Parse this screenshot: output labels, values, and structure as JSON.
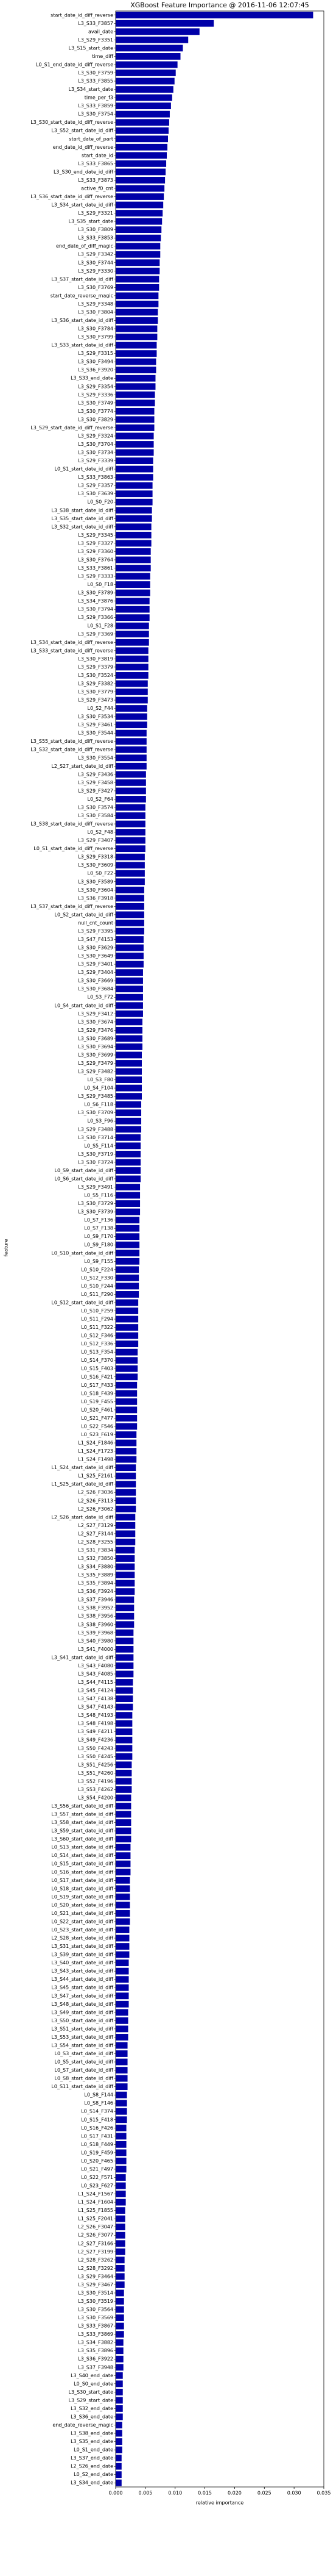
{
  "chart_data": {
    "type": "barh",
    "title": "XGBoost Feature Importance @ 2016-11-06 12:07:45",
    "xlabel": "relative importance",
    "ylabel": "feature",
    "color": "#0000a8",
    "xlim": [
      0,
      0.035
    ],
    "xticks": [
      {
        "value": 0,
        "label": "0.000"
      },
      {
        "value": 0.005,
        "label": "0.005"
      },
      {
        "value": 0.01,
        "label": "0.010"
      },
      {
        "value": 0.015,
        "label": "0.015"
      },
      {
        "value": 0.02,
        "label": "0.020"
      },
      {
        "value": 0.025,
        "label": "0.025"
      },
      {
        "value": 0.03,
        "label": "0.030"
      },
      {
        "value": 0.035,
        "label": "0.035"
      }
    ],
    "categories": [
      "start_date_id_diff_reverse",
      "L3_S33_F3857",
      "avail_date",
      "L3_S29_F3351",
      "L3_S15_start_date",
      "time_diff",
      "L0_S1_end_date_id_diff_reverse",
      "L3_S30_F3759",
      "L3_S33_F3855",
      "L3_S34_start_date",
      "time_per_f3",
      "L3_S33_F3859",
      "L3_S30_F3754",
      "L3_S30_start_date_id_diff_reverse",
      "L3_S52_start_date_id_diff",
      "start_date_of_part",
      "end_date_id_diff_reverse",
      "start_date_id",
      "L3_S33_F3865",
      "L3_S30_end_date_id_diff",
      "L3_S33_F3873",
      "active_f0_cnt",
      "L3_S36_start_date_id_diff_reverse",
      "L3_S34_start_date_id_diff",
      "L3_S29_F3321",
      "L3_S35_start_date",
      "L3_S30_F3809",
      "L3_S33_F3853",
      "end_date_of_diff_magic",
      "L3_S29_F3342",
      "L3_S30_F3744",
      "L3_S29_F3330",
      "L3_S37_start_date_id_diff",
      "L3_S30_F3769",
      "start_date_reverse_magic",
      "L3_S29_F3348",
      "L3_S30_F3804",
      "L3_S36_start_date_id_diff",
      "L3_S30_F3784",
      "L3_S30_F3799",
      "L3_S33_start_date_id_diff",
      "L3_S29_F3315",
      "L3_S30_F3494",
      "L3_S36_F3920",
      "L3_S33_end_date",
      "L3_S29_F3354",
      "L3_S29_F3336",
      "L3_S30_F3749",
      "L3_S30_F3774",
      "L3_S30_F3829",
      "L3_S29_start_date_id_diff_reverse",
      "L3_S29_F3324",
      "L3_S30_F3704",
      "L3_S30_F3734",
      "L3_S29_F3339",
      "L0_S1_start_date_id_diff",
      "L3_S33_F3863",
      "L3_S29_F3357",
      "L3_S30_F3639",
      "L0_S0_F20",
      "L3_S38_start_date_id_diff",
      "L3_S35_start_date_id_diff",
      "L3_S32_start_date_id_diff",
      "L3_S29_F3345",
      "L3_S29_F3327",
      "L3_S29_F3360",
      "L3_S30_F3764",
      "L3_S33_F3861",
      "L3_S29_F3333",
      "L0_S0_F18",
      "L3_S30_F3789",
      "L3_S34_F3876",
      "L3_S30_F3794",
      "L3_S29_F3366",
      "L0_S1_F28",
      "L3_S29_F3369",
      "L3_S34_start_date_id_diff_reverse",
      "L3_S33_start_date_id_diff_reverse",
      "L3_S30_F3819",
      "L3_S29_F3379",
      "L3_S30_F3524",
      "L3_S29_F3382",
      "L3_S30_F3779",
      "L3_S29_F3473",
      "L0_S2_F44",
      "L3_S30_F3534",
      "L3_S29_F3461",
      "L3_S30_F3544",
      "L3_S55_start_date_id_diff_reverse",
      "L3_S32_start_date_id_diff_reverse",
      "L3_S30_F3554",
      "L2_S27_start_date_id_diff",
      "L3_S29_F3436",
      "L3_S29_F3458",
      "L3_S29_F3427",
      "L0_S2_F64",
      "L3_S30_F3574",
      "L3_S30_F3584",
      "L3_S38_start_date_id_diff_reverse",
      "L0_S2_F48",
      "L3_S29_F3407",
      "L0_S1_start_date_id_diff_reverse",
      "L3_S29_F3318",
      "L3_S30_F3609",
      "L0_S0_F22",
      "L3_S30_F3589",
      "L3_S30_F3604",
      "L3_S36_F3918",
      "L3_S37_start_date_id_diff_reverse",
      "L0_S2_start_date_id_diff",
      "null_cnt_count",
      "L3_S29_F3395",
      "L3_S47_F4153",
      "L3_S30_F3629",
      "L3_S30_F3649",
      "L3_S29_F3401",
      "L3_S29_F3404",
      "L3_S30_F3669",
      "L3_S30_F3684",
      "L0_S3_F72",
      "L0_S4_start_date_id_diff",
      "L3_S29_F3412",
      "L3_S30_F3674",
      "L3_S29_F3476",
      "L3_S30_F3689",
      "L3_S30_F3694",
      "L3_S30_F3699",
      "L3_S29_F3479",
      "L3_S29_F3482",
      "L0_S3_F80",
      "L0_S4_F104",
      "L3_S29_F3485",
      "L0_S6_F118",
      "L3_S30_F3709",
      "L0_S3_F96",
      "L3_S29_F3488",
      "L3_S30_F3714",
      "L0_S5_F114",
      "L3_S30_F3719",
      "L3_S30_F3724",
      "L0_S9_start_date_id_diff",
      "L0_S6_start_date_id_diff",
      "L3_S29_F3491",
      "L0_S5_F116",
      "L3_S30_F3729",
      "L3_S30_F3739",
      "L0_S7_F136",
      "L0_S7_F138",
      "L0_S9_F170",
      "L0_S9_F180",
      "L0_S10_start_date_id_diff",
      "L0_S9_F155",
      "L0_S10_F224",
      "L0_S12_F330",
      "L0_S10_F244",
      "L0_S11_F290",
      "L0_S12_start_date_id_diff",
      "L0_S10_F259",
      "L0_S11_F294",
      "L0_S11_F322",
      "L0_S12_F346",
      "L0_S12_F336",
      "L0_S13_F354",
      "L0_S14_F370",
      "L0_S15_F403",
      "L0_S16_F421",
      "L0_S17_F433",
      "L0_S18_F439",
      "L0_S19_F455",
      "L0_S20_F461",
      "L0_S21_F477",
      "L0_S22_F546",
      "L0_S23_F619",
      "L1_S24_F1846",
      "L1_S24_F1723",
      "L1_S24_F1498",
      "L1_S24_start_date_id_diff",
      "L1_S25_F2161",
      "L1_S25_start_date_id_diff",
      "L2_S26_F3036",
      "L2_S26_F3113",
      "L2_S26_F3062",
      "L2_S26_start_date_id_diff",
      "L2_S27_F3129",
      "L2_S27_F3144",
      "L2_S28_F3255",
      "L3_S31_F3834",
      "L3_S32_F3850",
      "L3_S34_F3880",
      "L3_S35_F3889",
      "L3_S35_F3894",
      "L3_S36_F3924",
      "L3_S37_F3946",
      "L3_S38_F3952",
      "L3_S38_F3956",
      "L3_S38_F3960",
      "L3_S39_F3968",
      "L3_S40_F3980",
      "L3_S41_F4000",
      "L3_S41_start_date_id_diff",
      "L3_S43_F4080",
      "L3_S43_F4085",
      "L3_S44_F4115",
      "L3_S45_F4124",
      "L3_S47_F4138",
      "L3_S47_F4143",
      "L3_S48_F4193",
      "L3_S48_F4198",
      "L3_S49_F4211",
      "L3_S49_F4236",
      "L3_S50_F4243",
      "L3_S50_F4245",
      "L3_S51_F4256",
      "L3_S51_F4260",
      "L3_S52_F4196",
      "L3_S53_F4262",
      "L3_S54_F4200",
      "L3_S56_start_date_id_diff",
      "L3_S57_start_date_id_diff",
      "L3_S58_start_date_id_diff",
      "L3_S59_start_date_id_diff",
      "L3_S60_start_date_id_diff",
      "L0_S13_start_date_id_diff",
      "L0_S14_start_date_id_diff",
      "L0_S15_start_date_id_diff",
      "L0_S16_start_date_id_diff",
      "L0_S17_start_date_id_diff",
      "L0_S18_start_date_id_diff",
      "L0_S19_start_date_id_diff",
      "L0_S20_start_date_id_diff",
      "L0_S21_start_date_id_diff",
      "L0_S22_start_date_id_diff",
      "L0_S23_start_date_id_diff",
      "L2_S28_start_date_id_diff",
      "L3_S31_start_date_id_diff",
      "L3_S39_start_date_id_diff",
      "L3_S40_start_date_id_diff",
      "L3_S43_start_date_id_diff",
      "L3_S44_start_date_id_diff",
      "L3_S45_start_date_id_diff",
      "L3_S47_start_date_id_diff",
      "L3_S48_start_date_id_diff",
      "L3_S49_start_date_id_diff",
      "L3_S50_start_date_id_diff",
      "L3_S51_start_date_id_diff",
      "L3_S53_start_date_id_diff",
      "L3_S54_start_date_id_diff",
      "L0_S3_start_date_id_diff",
      "L0_S5_start_date_id_diff",
      "L0_S7_start_date_id_diff",
      "L0_S8_start_date_id_diff",
      "L0_S11_start_date_id_diff",
      "L0_S8_F144",
      "L0_S8_F146",
      "L0_S14_F374",
      "L0_S15_F418",
      "L0_S16_F426",
      "L0_S17_F431",
      "L0_S18_F449",
      "L0_S19_F459",
      "L0_S20_F465",
      "L0_S21_F497",
      "L0_S22_F571",
      "L0_S23_F627",
      "L1_S24_F1567",
      "L1_S24_F1604",
      "L1_S25_F1855",
      "L1_S25_F2041",
      "L2_S26_F3047",
      "L2_S26_F3077",
      "L2_S27_F3166",
      "L2_S27_F3199",
      "L2_S28_F3262",
      "L2_S28_F3292",
      "L3_S29_F3464",
      "L3_S29_F3467",
      "L3_S30_F3514",
      "L3_S30_F3519",
      "L3_S30_F3564",
      "L3_S30_F3569",
      "L3_S33_F3867",
      "L3_S33_F3869",
      "L3_S34_F3882",
      "L3_S35_F3896",
      "L3_S36_F3922",
      "L3_S37_F3948",
      "L3_S40_end_date",
      "L0_S0_end_date",
      "L3_S30_start_date",
      "L3_S29_start_date",
      "L3_S32_end_date",
      "L3_S36_end_date",
      "end_date_reverse_magic",
      "L3_S38_end_date",
      "L3_S35_end_date",
      "L0_S1_end_date",
      "L3_S37_end_date",
      "L2_S26_end_date",
      "L0_S2_end_date",
      "L3_S34_end_date"
    ],
    "values": [
      0.0332,
      0.0165,
      0.0141,
      0.0122,
      0.0113,
      0.0109,
      0.0104,
      0.0101,
      0.0099,
      0.0097,
      0.0095,
      0.0093,
      0.0091,
      0.009,
      0.0089,
      0.0088,
      0.0087,
      0.0086,
      0.0085,
      0.0084,
      0.0083,
      0.0082,
      0.0081,
      0.008,
      0.0079,
      0.0078,
      0.0077,
      0.0076,
      0.0075,
      0.0075,
      0.0074,
      0.0074,
      0.0073,
      0.0073,
      0.0072,
      0.0072,
      0.0071,
      0.0071,
      0.007,
      0.007,
      0.0069,
      0.0069,
      0.0068,
      0.0068,
      0.0067,
      0.0067,
      0.0066,
      0.0066,
      0.0065,
      0.0065,
      0.0065,
      0.0064,
      0.0064,
      0.0064,
      0.0063,
      0.0063,
      0.0063,
      0.0062,
      0.0062,
      0.0062,
      0.0061,
      0.0061,
      0.006,
      0.006,
      0.006,
      0.0059,
      0.0059,
      0.0059,
      0.0058,
      0.0058,
      0.0058,
      0.0057,
      0.0057,
      0.0057,
      0.0056,
      0.0056,
      0.0056,
      0.0055,
      0.0055,
      0.0055,
      0.0055,
      0.0054,
      0.0054,
      0.0054,
      0.0053,
      0.0053,
      0.0053,
      0.0052,
      0.0052,
      0.0052,
      0.0052,
      0.0052,
      0.0051,
      0.0051,
      0.0051,
      0.0051,
      0.005,
      0.005,
      0.005,
      0.005,
      0.005,
      0.005,
      0.0049,
      0.0049,
      0.0049,
      0.0049,
      0.0048,
      0.0048,
      0.0048,
      0.0048,
      0.0048,
      0.0048,
      0.0047,
      0.0047,
      0.0047,
      0.0047,
      0.0046,
      0.0046,
      0.0046,
      0.0046,
      0.0046,
      0.0046,
      0.0045,
      0.0045,
      0.0045,
      0.0045,
      0.0044,
      0.0044,
      0.0044,
      0.0044,
      0.0044,
      0.0044,
      0.0043,
      0.0043,
      0.0043,
      0.0043,
      0.0042,
      0.0042,
      0.0042,
      0.0042,
      0.0042,
      0.0042,
      0.0041,
      0.0041,
      0.0041,
      0.0041,
      0.004,
      0.004,
      0.004,
      0.004,
      0.004,
      0.004,
      0.0039,
      0.0039,
      0.0039,
      0.0039,
      0.0038,
      0.0038,
      0.0038,
      0.0038,
      0.0038,
      0.0038,
      0.0037,
      0.0037,
      0.0037,
      0.0037,
      0.0036,
      0.0036,
      0.0036,
      0.0036,
      0.0036,
      0.0036,
      0.0035,
      0.0035,
      0.0035,
      0.0035,
      0.0034,
      0.0034,
      0.0034,
      0.0034,
      0.0034,
      0.0034,
      0.0033,
      0.0033,
      0.0033,
      0.0033,
      0.0032,
      0.0032,
      0.0032,
      0.0032,
      0.0032,
      0.0032,
      0.0031,
      0.0031,
      0.0031,
      0.0031,
      0.003,
      0.003,
      0.003,
      0.003,
      0.003,
      0.003,
      0.0029,
      0.0029,
      0.0029,
      0.0029,
      0.0028,
      0.0028,
      0.0028,
      0.0028,
      0.0028,
      0.0028,
      0.0027,
      0.0027,
      0.0027,
      0.0027,
      0.0026,
      0.0026,
      0.0026,
      0.0026,
      0.0026,
      0.0026,
      0.0025,
      0.0025,
      0.0025,
      0.0025,
      0.0024,
      0.0024,
      0.0024,
      0.0024,
      0.0024,
      0.0024,
      0.0023,
      0.0023,
      0.0023,
      0.0023,
      0.0022,
      0.0022,
      0.0022,
      0.0022,
      0.0022,
      0.0022,
      0.0021,
      0.0021,
      0.0021,
      0.0021,
      0.002,
      0.002,
      0.002,
      0.002,
      0.002,
      0.002,
      0.0019,
      0.0019,
      0.0019,
      0.0019,
      0.0018,
      0.0018,
      0.0018,
      0.0018,
      0.0018,
      0.0018,
      0.0017,
      0.0017,
      0.0017,
      0.0017,
      0.0016,
      0.0016,
      0.0016,
      0.0016,
      0.0016,
      0.0016,
      0.0015,
      0.0015,
      0.0015,
      0.0015,
      0.0014,
      0.0014,
      0.0014,
      0.0014,
      0.0014,
      0.0014,
      0.0013,
      0.0013,
      0.0013,
      0.0013,
      0.0012,
      0.0012,
      0.0012,
      0.0012,
      0.0012,
      0.0012,
      0.0011,
      0.0011,
      0.0011,
      0.0011,
      0.001,
      0.001,
      0.001,
      0.001
    ]
  }
}
